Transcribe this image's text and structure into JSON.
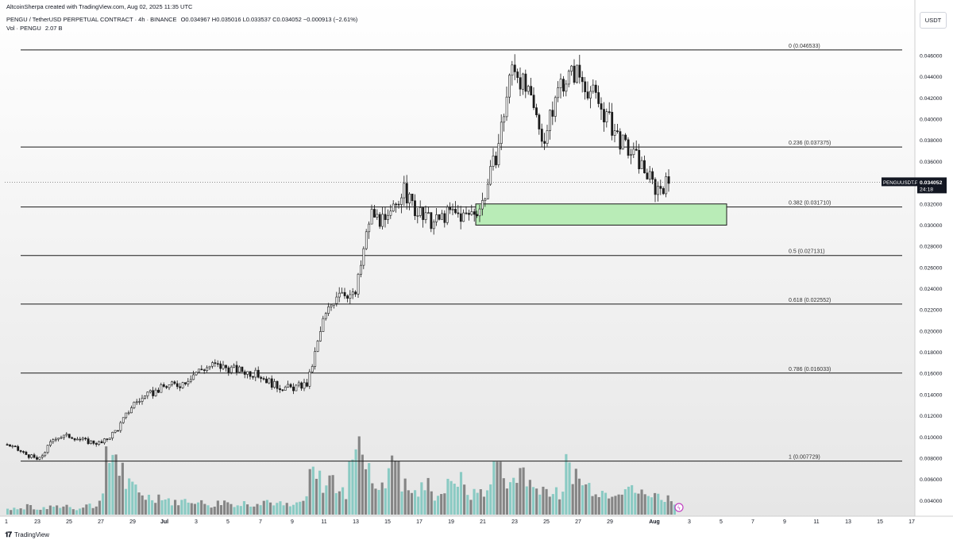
{
  "header": {
    "attribution": "AltcoinSherpa created with TradingView.com, Aug 02, 2025 11:35 UTC",
    "title": "PENGU / TetherUSD PERPETUAL CONTRACT · 4h · BINANCE",
    "ohlc": "O0.034967 H0.035016 L0.033537 C0.034052 −0.000913 (−2.61%)",
    "volume_label": "Vol · PENGU",
    "volume_value": "2.07 B"
  },
  "price_axis": {
    "unit": "USDT",
    "ticks": [
      "0.046000",
      "0.044000",
      "0.042000",
      "0.040000",
      "0.038000",
      "0.036000",
      "0.034000",
      "0.032000",
      "0.030000",
      "0.028000",
      "0.026000",
      "0.024000",
      "0.022000",
      "0.020000",
      "0.018000",
      "0.016000",
      "0.014000",
      "0.012000",
      "0.010000",
      "0.008000",
      "0.006000",
      "0.004000"
    ],
    "symbol_tag": "PENGUUSDT.P",
    "last_price": "0.034052",
    "countdown": "24:18",
    "tag_color": "#131722"
  },
  "time_axis": {
    "ticks": [
      "1",
      "23",
      "25",
      "27",
      "29",
      "Jul",
      "3",
      "5",
      "7",
      "9",
      "11",
      "13",
      "15",
      "17",
      "19",
      "21",
      "23",
      "25",
      "27",
      "29",
      "Aug",
      "3",
      "5",
      "7",
      "9",
      "11",
      "13",
      "15",
      "17"
    ]
  },
  "footer": {
    "brand": "TradingView",
    "logo": "tradingview-logo"
  },
  "chart_data": {
    "type": "candlestick",
    "symbol": "PENGUUSDT.P",
    "interval": "4h",
    "ylim": [
      0.0035,
      0.0475
    ],
    "grid": false,
    "fib_levels": [
      {
        "label": "0 (0.046533)",
        "value": 0.046533
      },
      {
        "label": "0.236 (0.037375)",
        "value": 0.037375
      },
      {
        "label": "0.382 (0.031710)",
        "value": 0.03171
      },
      {
        "label": "0.5 (0.027131)",
        "value": 0.027131
      },
      {
        "label": "0.618 (0.022552)",
        "value": 0.022552
      },
      {
        "label": "0.786 (0.016033)",
        "value": 0.016033
      },
      {
        "label": "1 (0.007729)",
        "value": 0.007729
      }
    ],
    "highlight_zone": {
      "from": "Jul 21",
      "to": "Aug 05",
      "low": 0.03,
      "high": 0.032,
      "color": "#b9ecb7"
    },
    "price_path": [
      [
        "Jun 21",
        0.0093
      ],
      [
        "Jun 22",
        0.0085
      ],
      [
        "Jun 23",
        0.0078
      ],
      [
        "Jun 24",
        0.01
      ],
      [
        "Jun 25",
        0.0101
      ],
      [
        "Jun 26",
        0.0096
      ],
      [
        "Jun 27",
        0.0094
      ],
      [
        "Jun 28",
        0.0108
      ],
      [
        "Jun 29",
        0.0132
      ],
      [
        "Jun 30",
        0.014
      ],
      [
        "Jul 01",
        0.0148
      ],
      [
        "Jul 02",
        0.015
      ],
      [
        "Jul 03",
        0.0162
      ],
      [
        "Jul 04",
        0.0168
      ],
      [
        "Jul 05",
        0.0165
      ],
      [
        "Jul 06",
        0.0162
      ],
      [
        "Jul 07",
        0.0158
      ],
      [
        "Jul 08",
        0.0148
      ],
      [
        "Jul 09",
        0.0146
      ],
      [
        "Jul 10",
        0.015
      ],
      [
        "Jul 11",
        0.021
      ],
      [
        "Jul 12",
        0.024
      ],
      [
        "Jul 13",
        0.0232
      ],
      [
        "Jul 14",
        0.0312
      ],
      [
        "Jul 15",
        0.03
      ],
      [
        "Jul 16",
        0.0334
      ],
      [
        "Jul 17",
        0.031
      ],
      [
        "Jul 18",
        0.0302
      ],
      [
        "Jul 19",
        0.0312
      ],
      [
        "Jul 20",
        0.0308
      ],
      [
        "Jul 21",
        0.0318
      ],
      [
        "Jul 22",
        0.037
      ],
      [
        "Jul 23",
        0.0455
      ],
      [
        "Jul 24",
        0.042
      ],
      [
        "Jul 25",
        0.038
      ],
      [
        "Jul 26",
        0.0435
      ],
      [
        "Jul 27",
        0.0445
      ],
      [
        "Jul 28",
        0.0425
      ],
      [
        "Jul 29",
        0.04
      ],
      [
        "Jul 30",
        0.0375
      ],
      [
        "Jul 31",
        0.036
      ],
      [
        "Aug 01",
        0.0335
      ],
      [
        "Aug 02",
        0.0341
      ]
    ],
    "volume_levels": [
      0.05,
      0.06,
      0.05,
      0.08,
      0.04,
      0.05,
      0.06,
      0.07,
      0.07,
      0.08,
      0.05,
      0.06,
      0.08,
      0.07,
      0.16,
      0.45,
      0.52,
      0.38,
      0.25,
      0.22,
      0.18,
      0.15,
      0.14,
      0.16,
      0.13,
      0.1,
      0.11,
      0.12,
      0.12,
      0.1,
      0.09,
      0.08,
      0.1,
      0.11,
      0.09,
      0.08,
      0.1,
      0.09,
      0.11,
      0.12,
      0.1,
      0.09,
      0.08,
      0.07,
      0.1,
      0.12,
      0.35,
      0.3,
      0.25,
      0.3,
      0.22,
      0.18,
      0.55,
      0.62,
      0.42,
      0.35,
      0.22,
      0.3,
      0.4,
      0.48,
      0.25,
      0.2,
      0.18,
      0.22,
      0.26,
      0.15,
      0.2,
      0.24,
      0.3,
      0.28,
      0.16,
      0.18,
      0.2,
      0.22,
      0.46,
      0.36,
      0.3,
      0.26,
      0.4,
      0.28,
      0.22,
      0.24,
      0.2,
      0.18,
      0.16,
      0.42,
      0.36,
      0.28,
      0.24,
      0.22,
      0.2,
      0.18,
      0.2,
      0.22,
      0.24,
      0.2,
      0.18,
      0.16,
      0.19,
      0.15,
      0.14,
      0.12
    ],
    "volume_colors": {
      "up": "#7fc7bf",
      "down": "#7a7a7a"
    }
  }
}
